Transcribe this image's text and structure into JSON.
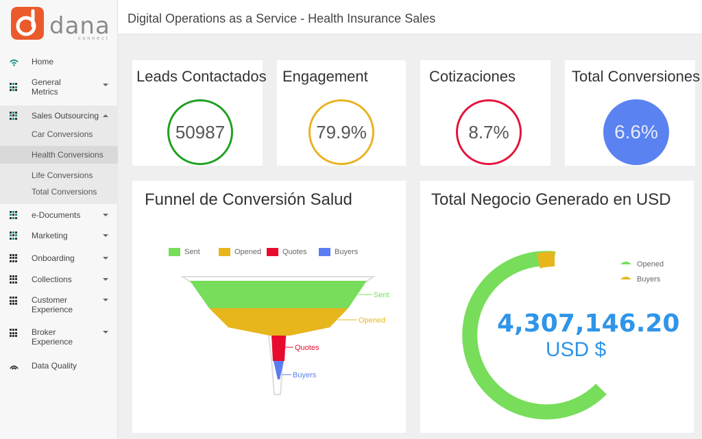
{
  "app": {
    "brand": "dana",
    "brand_sub": "connect",
    "page_title": "Digital Operations as a Service - Health Insurance Sales"
  },
  "sidebar": {
    "items": [
      {
        "label": "Home"
      },
      {
        "label": "General Metrics"
      },
      {
        "label": "Sales Outsourcing"
      },
      {
        "label": "e-Documents"
      },
      {
        "label": "Marketing"
      },
      {
        "label": "Onboarding"
      },
      {
        "label": "Collections"
      },
      {
        "label": "Customer Experience"
      },
      {
        "label": "Broker Experience"
      },
      {
        "label": "Data Quality"
      }
    ],
    "sub_items": [
      {
        "label": "Car Conversions"
      },
      {
        "label": "Health Conversions"
      },
      {
        "label": "Life Conversions"
      },
      {
        "label": "Total Conversions"
      }
    ]
  },
  "kpis": [
    {
      "title": "Leads Contactados",
      "value": "50987",
      "color": "#1fa01f"
    },
    {
      "title": "Engagement",
      "value": "79.9%",
      "color": "#e8b321"
    },
    {
      "title": "Cotizaciones",
      "value": "8.7%",
      "color": "#e3133a"
    },
    {
      "title": "Total Conversiones",
      "value": "6.6%",
      "color": "#5a82f0"
    }
  ],
  "funnel": {
    "title": "Funnel de Conversión Salud",
    "chart_data": {
      "type": "funnel",
      "categories": [
        "Sent",
        "Opened",
        "Quotes",
        "Buyers"
      ],
      "colors": [
        "#77dd5a",
        "#e6b61c",
        "#e80b2e",
        "#5a7df2"
      ],
      "legend": [
        "Sent",
        "Opened",
        "Quotes",
        "Buyers"
      ]
    }
  },
  "revenue": {
    "title": "Total Negocio Generado en USD",
    "value": "4,307,146.20",
    "currency": "USD $",
    "legend": [
      "Opened",
      "Buyers"
    ],
    "colors": [
      "#77dd5a",
      "#e6b61c"
    ]
  }
}
